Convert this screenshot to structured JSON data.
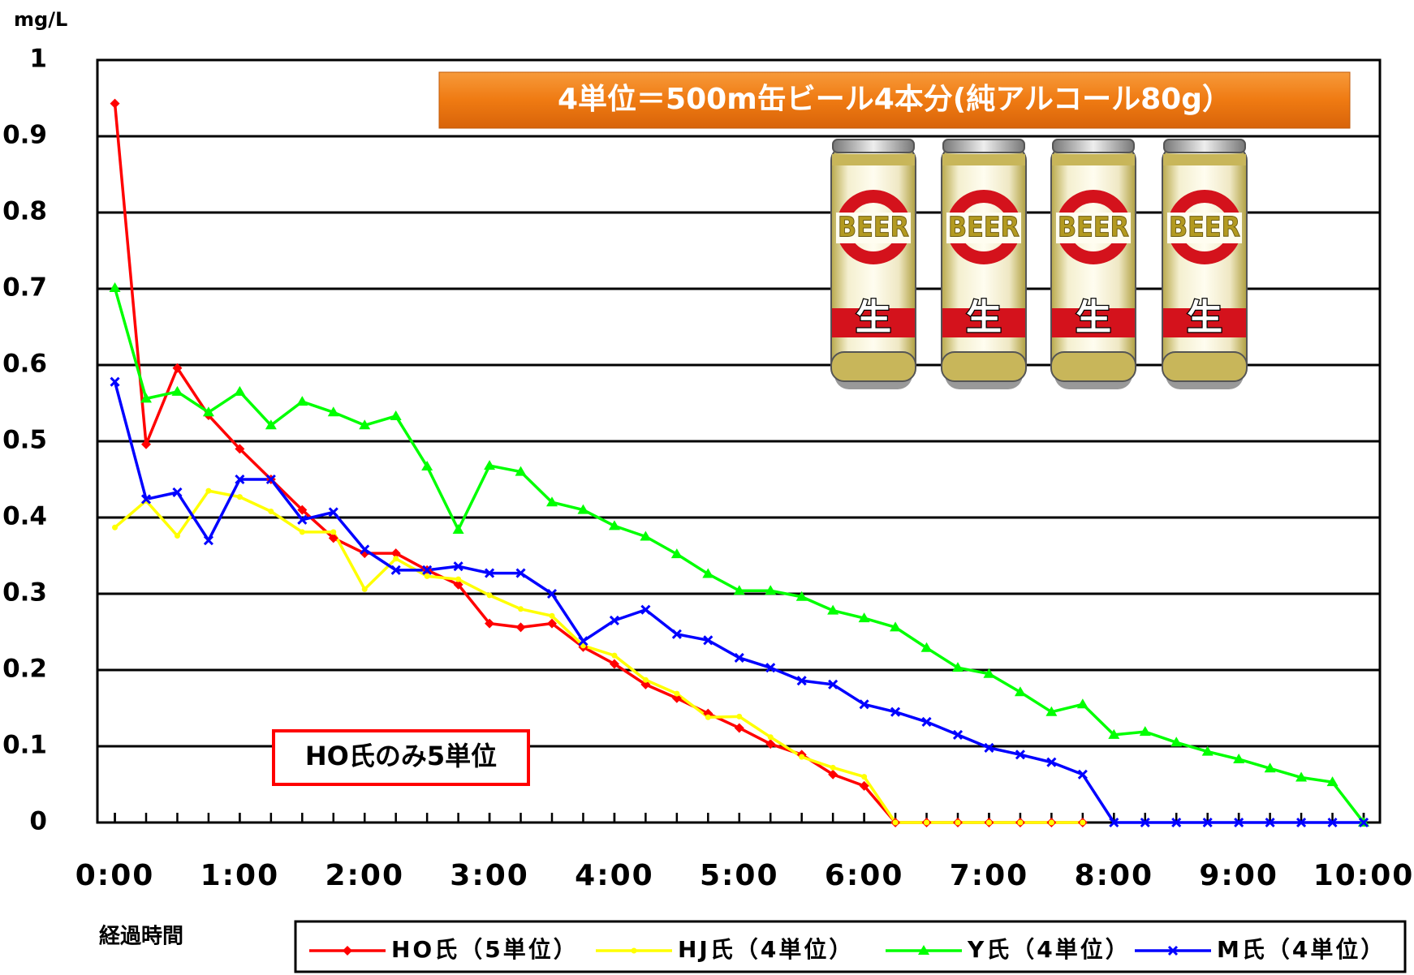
{
  "chart_data": {
    "type": "line",
    "title": "4単位＝500m缶ビール4本分(純アルコール80g）",
    "y_label": "mg/L",
    "x_label": "経過時間",
    "annotation": "HO氏のみ5単位",
    "illustration": {
      "label": "BEER",
      "mark": "生"
    },
    "x": [
      0,
      0.25,
      0.5,
      0.75,
      1,
      1.25,
      1.5,
      1.75,
      2,
      2.25,
      2.5,
      2.75,
      3,
      3.25,
      3.5,
      3.75,
      4,
      4.25,
      4.5,
      4.75,
      5,
      5.25,
      5.5,
      5.75,
      6,
      6.25,
      6.5,
      6.75,
      7,
      7.25,
      7.5,
      7.75,
      8,
      8.25,
      8.5,
      8.75,
      9,
      9.25,
      9.5,
      9.75,
      10
    ],
    "xlim": [
      -0.14,
      10.13
    ],
    "xticks": [
      {
        "value": 0,
        "label": "0:00"
      },
      {
        "value": 1,
        "label": "1:00"
      },
      {
        "value": 2,
        "label": "2:00"
      },
      {
        "value": 3,
        "label": "3:00"
      },
      {
        "value": 4,
        "label": "4:00"
      },
      {
        "value": 5,
        "label": "5:00"
      },
      {
        "value": 6,
        "label": "6:00"
      },
      {
        "value": 7,
        "label": "7:00"
      },
      {
        "value": 8,
        "label": "8:00"
      },
      {
        "value": 9,
        "label": "9:00"
      },
      {
        "value": 10,
        "label": "10:00"
      }
    ],
    "ylim": [
      0,
      1
    ],
    "yticks": [
      0,
      0.1,
      0.2,
      0.3,
      0.4,
      0.5,
      0.6,
      0.7,
      0.8,
      0.9,
      1
    ],
    "grid": true,
    "legend": "bottom",
    "series": [
      {
        "name": "HO氏（5単位）",
        "color": "#ff0000",
        "marker": "diamond",
        "values": [
          0.943,
          0.496,
          0.596,
          0.534,
          0.49,
          0.45,
          0.41,
          0.373,
          0.353,
          0.353,
          0.331,
          0.312,
          0.261,
          0.256,
          0.261,
          0.23,
          0.208,
          0.181,
          0.163,
          0.143,
          0.124,
          0.103,
          0.089,
          0.063,
          0.048,
          0,
          0,
          0,
          0,
          0,
          0,
          0,
          null,
          null,
          null,
          null,
          null,
          null,
          null,
          null,
          null
        ]
      },
      {
        "name": "HJ氏（4単位）",
        "color": "#ffff00",
        "marker": "dot",
        "values": [
          0.387,
          0.422,
          0.376,
          0.435,
          0.427,
          0.408,
          0.381,
          0.381,
          0.306,
          0.346,
          0.323,
          0.319,
          0.298,
          0.28,
          0.271,
          0.232,
          0.219,
          0.187,
          0.169,
          0.138,
          0.139,
          0.112,
          0.086,
          0.072,
          0.06,
          0,
          0,
          0,
          0,
          0,
          0,
          0,
          null,
          null,
          null,
          null,
          null,
          null,
          null,
          null,
          null
        ]
      },
      {
        "name": "Y氏（4単位）",
        "color": "#00ff00",
        "marker": "triangle",
        "values": [
          0.701,
          0.556,
          0.565,
          0.538,
          0.565,
          0.521,
          0.552,
          0.538,
          0.521,
          0.533,
          0.467,
          0.384,
          0.468,
          0.46,
          0.42,
          0.41,
          0.389,
          0.375,
          0.352,
          0.326,
          0.304,
          0.304,
          0.296,
          0.278,
          0.268,
          0.256,
          0.229,
          0.203,
          0.195,
          0.171,
          0.145,
          0.155,
          0.115,
          0.119,
          0.105,
          0.093,
          0.083,
          0.071,
          0.059,
          0.053,
          0
        ]
      },
      {
        "name": "M氏（4単位）",
        "color": "#0000ff",
        "marker": "cross",
        "values": [
          0.578,
          0.424,
          0.433,
          0.37,
          0.45,
          0.45,
          0.397,
          0.407,
          0.358,
          0.331,
          0.331,
          0.336,
          0.327,
          0.327,
          0.3,
          0.238,
          0.265,
          0.279,
          0.247,
          0.239,
          0.216,
          0.203,
          0.186,
          0.181,
          0.155,
          0.145,
          0.132,
          0.115,
          0.098,
          0.089,
          0.079,
          0.063,
          0,
          0,
          0,
          0,
          0,
          0,
          0,
          0,
          0
        ]
      }
    ]
  }
}
